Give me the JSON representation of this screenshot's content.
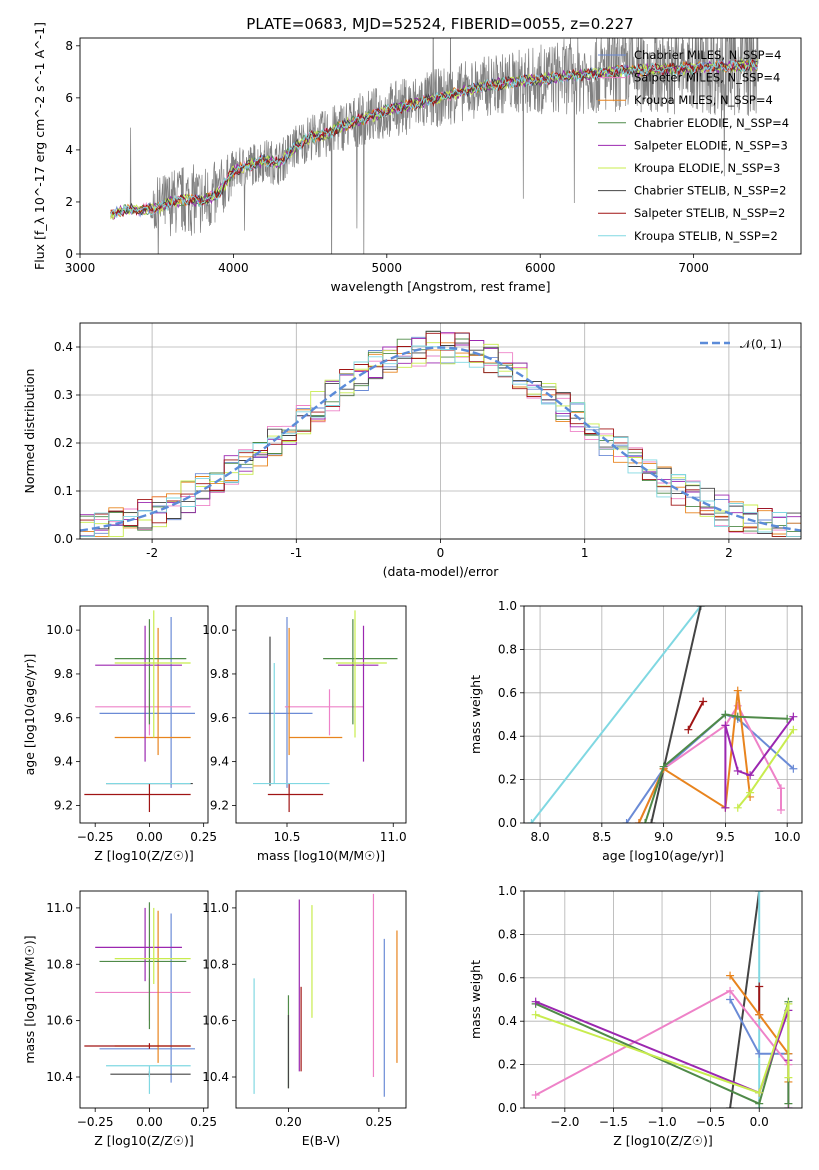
{
  "figure": {
    "title": "PLATE=0683, MJD=52524, FIBERID=0055, z=0.227"
  },
  "series_colors": {
    "Chabrier MILES": "#6b8bd6",
    "Salpeter MILES": "#ee82c8",
    "Kroupa MILES": "#e8841e",
    "Chabrier ELODIE": "#4f8a48",
    "Salpeter ELODIE": "#9b27b0",
    "Kroupa ELODIE": "#c8ec4e",
    "Chabrier STELIB": "#444444",
    "Salpeter STELIB": "#a01414",
    "Kroupa STELIB": "#80d8e2",
    "data": "#808080",
    "gaussian": "#5b8bd8"
  },
  "chart_data": [
    {
      "id": "spectrum",
      "type": "line",
      "title": "PLATE=0683, MJD=52524, FIBERID=0055, z=0.227",
      "xlabel": "wavelength [Angstrom, rest frame]",
      "ylabel": "Flux [f_λ 10^-17 erg cm^-2 s^-1 A^-1]",
      "xlim": [
        3000,
        7700
      ],
      "ylim": [
        0,
        8.3
      ],
      "xticks": [
        3000,
        4000,
        5000,
        6000,
        7000
      ],
      "yticks": [
        0,
        2,
        4,
        6,
        8
      ],
      "legend_loc": "right",
      "legend": [
        "Chabrier MILES, N_SSP=4",
        "Salpeter MILES, N_SSP=4",
        "Kroupa MILES, N_SSP=4",
        "Chabrier ELODIE, N_SSP=4",
        "Salpeter ELODIE, N_SSP=3",
        "Kroupa ELODIE, N_SSP=3",
        "Chabrier STELIB, N_SSP=2",
        "Salpeter STELIB, N_SSP=2",
        "Kroupa STELIB, N_SSP=2"
      ],
      "model_continuum": {
        "x": [
          3200,
          3300,
          3400,
          3500,
          3600,
          3700,
          3800,
          3900,
          4000,
          4100,
          4200,
          4300,
          4400,
          4500,
          4600,
          4700,
          4800,
          4900,
          5000,
          5200,
          5400,
          5600,
          5800,
          6000,
          6200,
          6400,
          6600,
          6800,
          7000,
          7200,
          7400
        ],
        "y": [
          1.5,
          1.7,
          1.7,
          1.75,
          2.0,
          2.1,
          2.05,
          2.3,
          3.2,
          3.4,
          3.6,
          3.5,
          4.1,
          4.5,
          4.6,
          4.9,
          5.1,
          5.3,
          5.5,
          5.8,
          6.1,
          6.4,
          6.6,
          6.7,
          6.85,
          6.95,
          7.05,
          7.1,
          7.15,
          7.2,
          7.25
        ]
      },
      "data_noise_by_wavelength": {
        "x": [
          3200,
          3450,
          3500,
          3700,
          3900,
          4000,
          4500,
          5000,
          5800,
          6200,
          6700,
          7000,
          7400
        ],
        "noise": [
          0.1,
          0.1,
          1.2,
          1.4,
          1.3,
          0.8,
          0.9,
          1.1,
          1.2,
          1.5,
          1.7,
          1.8,
          2.0
        ]
      }
    },
    {
      "id": "residuals",
      "type": "bar",
      "xlabel": "(data-model)/error",
      "ylabel": "Normed distribution",
      "xlim": [
        -2.5,
        2.5
      ],
      "ylim": [
        0,
        0.45
      ],
      "xticks": [
        -2,
        -1,
        0,
        1,
        2
      ],
      "yticks": [
        0.0,
        0.1,
        0.2,
        0.3,
        0.4
      ],
      "legend": [
        "𝒩(0, 1)"
      ],
      "legend_loc": "upper right",
      "bin_width": 0.1,
      "note": "nine step histograms (one per model) scattered around the standard normal curve"
    },
    {
      "id": "age_vs_Z",
      "type": "scatter",
      "xlabel": "Z [log10(Z/Z☉)]",
      "ylabel": "age [log10(age/yr)]",
      "xlim": [
        -0.32,
        0.27
      ],
      "ylim": [
        9.12,
        10.11
      ],
      "xticks": [
        -0.25,
        0.0,
        0.25
      ],
      "yticks": [
        9.2,
        9.4,
        9.6,
        9.8,
        10.0
      ],
      "points": [
        {
          "model": "Chabrier MILES",
          "x": 0.1,
          "xerr": [
            0.33,
            0.11
          ],
          "y": 9.62,
          "yerr": [
            0.34,
            0.44
          ]
        },
        {
          "model": "Salpeter MILES",
          "x": 0.0,
          "xerr": [
            0.25,
            0.19
          ],
          "y": 9.65,
          "yerr": [
            0.13,
            0.08
          ]
        },
        {
          "model": "Kroupa MILES",
          "x": 0.04,
          "xerr": [
            0.2,
            0.15
          ],
          "y": 9.51,
          "yerr": [
            0.08,
            0.5
          ]
        },
        {
          "model": "Chabrier ELODIE",
          "x": 0.0,
          "xerr": [
            0.16,
            0.17
          ],
          "y": 9.87,
          "yerr": [
            0.3,
            0.18
          ]
        },
        {
          "model": "Salpeter ELODIE",
          "x": -0.02,
          "xerr": [
            0.23,
            0.17
          ],
          "y": 9.84,
          "yerr": [
            0.44,
            0.18
          ]
        },
        {
          "model": "Kroupa ELODIE",
          "x": 0.02,
          "xerr": [
            0.18,
            0.17
          ],
          "y": 9.85,
          "yerr": [
            0.34,
            0.24
          ]
        },
        {
          "model": "Chabrier STELIB",
          "x": 0.0,
          "xerr": [
            0.2,
            0.2
          ],
          "y": 9.3,
          "yerr": [
            0.0,
            0.0
          ]
        },
        {
          "model": "Salpeter STELIB",
          "x": 0.0,
          "xerr": [
            0.3,
            0.19
          ],
          "y": 9.25,
          "yerr": [
            0.08,
            0.05
          ]
        },
        {
          "model": "Kroupa STELIB",
          "x": 0.0,
          "xerr": [
            0.2,
            0.19
          ],
          "y": 9.3,
          "yerr": [
            0.0,
            0.0
          ]
        }
      ]
    },
    {
      "id": "age_vs_mass",
      "type": "scatter",
      "xlabel": "mass [log10(M/M☉)]",
      "ylabel": "",
      "xlim": [
        10.26,
        11.06
      ],
      "ylim": [
        9.12,
        10.11
      ],
      "xticks": [
        10.5,
        11.0
      ],
      "yticks": [
        9.2,
        9.4,
        9.6,
        9.8,
        10.0
      ],
      "points": [
        {
          "model": "Chabrier MILES",
          "x": 10.5,
          "xerr": [
            0.18,
            0.12
          ],
          "y": 9.62,
          "yerr": [
            0.34,
            0.44
          ]
        },
        {
          "model": "Salpeter MILES",
          "x": 10.7,
          "xerr": [
            0.21,
            0.16
          ],
          "y": 9.65,
          "yerr": [
            0.13,
            0.08
          ]
        },
        {
          "model": "Kroupa MILES",
          "x": 10.51,
          "xerr": [
            0.0,
            0.25
          ],
          "y": 9.51,
          "yerr": [
            0.08,
            0.5
          ]
        },
        {
          "model": "Chabrier ELODIE",
          "x": 10.81,
          "xerr": [
            0.14,
            0.21
          ],
          "y": 9.87,
          "yerr": [
            0.3,
            0.18
          ]
        },
        {
          "model": "Salpeter ELODIE",
          "x": 10.86,
          "xerr": [
            0.12,
            0.07
          ],
          "y": 9.84,
          "yerr": [
            0.44,
            0.18
          ]
        },
        {
          "model": "Kroupa ELODIE",
          "x": 10.82,
          "xerr": [
            0.09,
            0.15
          ],
          "y": 9.85,
          "yerr": [
            0.34,
            0.24
          ]
        },
        {
          "model": "Chabrier STELIB",
          "x": 10.42,
          "xerr": [
            0.0,
            0.0
          ],
          "y": 9.3,
          "yerr": [
            0.01,
            0.67
          ]
        },
        {
          "model": "Salpeter STELIB",
          "x": 10.51,
          "xerr": [
            0.1,
            0.16
          ],
          "y": 9.25,
          "yerr": [
            0.08,
            0.05
          ]
        },
        {
          "model": "Kroupa STELIB",
          "x": 10.44,
          "xerr": [
            0.1,
            0.26
          ],
          "y": 9.3,
          "yerr": [
            0.0,
            0.55
          ]
        }
      ]
    },
    {
      "id": "weight_vs_age",
      "type": "line",
      "xlabel": "age [log10(age/yr)]",
      "ylabel": "mass weight",
      "xlim": [
        7.87,
        10.12
      ],
      "ylim": [
        0,
        1.0
      ],
      "xticks": [
        8.0,
        8.5,
        9.0,
        9.5,
        10.0
      ],
      "yticks": [
        0.0,
        0.2,
        0.4,
        0.6,
        0.8,
        1.0
      ],
      "series": [
        {
          "model": "Kroupa STELIB",
          "x": [
            7.93,
            9.3
          ],
          "y": [
            0.0,
            1.0
          ]
        },
        {
          "model": "Chabrier STELIB",
          "x": [
            8.9,
            9.3
          ],
          "y": [
            0.0,
            1.0
          ]
        },
        {
          "model": "Salpeter STELIB",
          "x": [
            9.2,
            9.32
          ],
          "y": [
            0.43,
            0.56
          ]
        },
        {
          "model": "Chabrier MILES",
          "x": [
            8.7,
            9.0,
            9.5,
            9.6,
            10.05
          ],
          "y": [
            0.0,
            0.25,
            0.5,
            0.48,
            0.25
          ]
        },
        {
          "model": "Salpeter MILES",
          "x": [
            8.8,
            9.0,
            9.5,
            9.6,
            9.95,
            9.95
          ],
          "y": [
            0.0,
            0.25,
            0.45,
            0.54,
            0.16,
            0.06
          ]
        },
        {
          "model": "Kroupa MILES",
          "x": [
            8.8,
            9.0,
            9.5,
            9.6,
            9.7
          ],
          "y": [
            0.0,
            0.25,
            0.07,
            0.61,
            0.12
          ]
        },
        {
          "model": "Chabrier ELODIE",
          "x": [
            8.85,
            9.0,
            9.5,
            9.6,
            10.0
          ],
          "y": [
            0.0,
            0.26,
            0.5,
            0.49,
            0.48
          ]
        },
        {
          "model": "Salpeter ELODIE",
          "x": [
            9.5,
            9.5,
            9.6,
            9.7,
            10.05
          ],
          "y": [
            0.07,
            0.45,
            0.24,
            0.22,
            0.49
          ]
        },
        {
          "model": "Kroupa ELODIE",
          "x": [
            9.6,
            9.7,
            10.05
          ],
          "y": [
            0.07,
            0.14,
            0.43
          ]
        }
      ]
    },
    {
      "id": "mass_vs_Z",
      "type": "scatter",
      "xlabel": "Z [log10(Z/Z☉)]",
      "ylabel": "mass [log10(M/M☉)]",
      "xlim": [
        -0.32,
        0.27
      ],
      "ylim": [
        10.29,
        11.06
      ],
      "xticks": [
        -0.25,
        0.0,
        0.25
      ],
      "yticks": [
        10.4,
        10.6,
        10.8,
        11.0
      ],
      "points": [
        {
          "model": "Chabrier MILES",
          "x": 0.1,
          "xerr": [
            0.33,
            0.11
          ],
          "y": 10.5,
          "yerr": [
            0.12,
            0.48
          ]
        },
        {
          "model": "Salpeter MILES",
          "x": 0.0,
          "xerr": [
            0.25,
            0.19
          ],
          "y": 10.7,
          "yerr": [
            0.1,
            0.05
          ]
        },
        {
          "model": "Kroupa MILES",
          "x": 0.04,
          "xerr": [
            0.2,
            0.15
          ],
          "y": 10.51,
          "yerr": [
            0.06,
            0.48
          ]
        },
        {
          "model": "Chabrier ELODIE",
          "x": 0.0,
          "xerr": [
            0.23,
            0.17
          ],
          "y": 10.81,
          "yerr": [
            0.24,
            0.21
          ]
        },
        {
          "model": "Salpeter ELODIE",
          "x": -0.02,
          "xerr": [
            0.23,
            0.17
          ],
          "y": 10.86,
          "yerr": [
            0.12,
            0.14
          ]
        },
        {
          "model": "Kroupa ELODIE",
          "x": 0.02,
          "xerr": [
            0.18,
            0.17
          ],
          "y": 10.82,
          "yerr": [
            0.09,
            0.18
          ]
        },
        {
          "model": "Chabrier STELIB",
          "x": 0.0,
          "xerr": [
            0.18,
            0.19
          ],
          "y": 10.41,
          "yerr": [
            0.01,
            0.01
          ]
        },
        {
          "model": "Salpeter STELIB",
          "x": 0.0,
          "xerr": [
            0.3,
            0.19
          ],
          "y": 10.51,
          "yerr": [
            0.01,
            0.01
          ]
        },
        {
          "model": "Kroupa STELIB",
          "x": 0.0,
          "xerr": [
            0.2,
            0.19
          ],
          "y": 10.44,
          "yerr": [
            0.1,
            0.0
          ]
        }
      ]
    },
    {
      "id": "mass_vs_ebv",
      "type": "scatter",
      "xlabel": "E(B-V)",
      "ylabel": "",
      "xlim": [
        0.171,
        0.265
      ],
      "ylim": [
        10.29,
        11.06
      ],
      "xticks": [
        0.2,
        0.25
      ],
      "yticks": [
        10.4,
        10.6,
        10.8,
        11.0
      ],
      "points": [
        {
          "model": "Chabrier MILES",
          "x": 0.253,
          "xerr": [
            0,
            0
          ],
          "y": 10.55,
          "yerr": [
            0.22,
            0.34
          ]
        },
        {
          "model": "Salpeter MILES",
          "x": 0.247,
          "xerr": [
            0,
            0
          ],
          "y": 10.7,
          "yerr": [
            0.3,
            0.35
          ]
        },
        {
          "model": "Kroupa MILES",
          "x": 0.26,
          "xerr": [
            0,
            0
          ],
          "y": 10.65,
          "yerr": [
            0.2,
            0.27
          ]
        },
        {
          "model": "Chabrier ELODIE",
          "x": 0.2,
          "xerr": [
            0,
            0
          ],
          "y": 10.55,
          "yerr": [
            0.19,
            0.14
          ]
        },
        {
          "model": "Salpeter ELODIE",
          "x": 0.206,
          "xerr": [
            0,
            0
          ],
          "y": 10.75,
          "yerr": [
            0.33,
            0.28
          ]
        },
        {
          "model": "Kroupa ELODIE",
          "x": 0.213,
          "xerr": [
            0,
            0
          ],
          "y": 10.8,
          "yerr": [
            0.19,
            0.21
          ]
        },
        {
          "model": "Chabrier STELIB",
          "x": 0.2,
          "xerr": [
            0,
            0
          ],
          "y": 10.5,
          "yerr": [
            0.14,
            0.12
          ]
        },
        {
          "model": "Salpeter STELIB",
          "x": 0.207,
          "xerr": [
            0,
            0
          ],
          "y": 10.6,
          "yerr": [
            0.18,
            0.12
          ]
        },
        {
          "model": "Kroupa STELIB",
          "x": 0.181,
          "xerr": [
            0,
            0
          ],
          "y": 10.55,
          "yerr": [
            0.21,
            0.2
          ]
        }
      ]
    },
    {
      "id": "weight_vs_Z",
      "type": "line",
      "xlabel": "Z [log10(Z/Z☉)]",
      "ylabel": "mass weight",
      "xlim": [
        -2.42,
        0.44
      ],
      "ylim": [
        0,
        1.0
      ],
      "xticks": [
        -2.0,
        -1.5,
        -1.0,
        -0.5,
        0.0
      ],
      "yticks": [
        0.0,
        0.2,
        0.4,
        0.6,
        0.8,
        1.0
      ],
      "series": [
        {
          "model": "Chabrier STELIB",
          "x": [
            -0.3,
            0.0
          ],
          "y": [
            0.0,
            1.0
          ]
        },
        {
          "model": "Kroupa STELIB",
          "x": [
            0.0,
            0.0
          ],
          "y": [
            0.0,
            1.0
          ]
        },
        {
          "model": "Salpeter STELIB",
          "x": [
            0.0,
            0.0
          ],
          "y": [
            0.43,
            0.56
          ]
        },
        {
          "model": "Chabrier MILES",
          "x": [
            -0.3,
            0.0,
            0.3,
            0.3
          ],
          "y": [
            0.5,
            0.25,
            0.25,
            0.0
          ]
        },
        {
          "model": "Salpeter MILES",
          "x": [
            -2.3,
            -0.3,
            0.3,
            0.3
          ],
          "y": [
            0.06,
            0.54,
            0.2,
            0.0
          ]
        },
        {
          "model": "Kroupa MILES",
          "x": [
            -0.3,
            0.0,
            0.3,
            0.3
          ],
          "y": [
            0.61,
            0.43,
            0.25,
            0.12
          ]
        },
        {
          "model": "Chabrier ELODIE",
          "x": [
            -2.3,
            0.0,
            0.3,
            0.3
          ],
          "y": [
            0.48,
            0.02,
            0.49,
            0.02
          ]
        },
        {
          "model": "Salpeter ELODIE",
          "x": [
            -2.3,
            0.0,
            0.3,
            0.3
          ],
          "y": [
            0.49,
            0.07,
            0.45,
            0.22
          ]
        },
        {
          "model": "Kroupa ELODIE",
          "x": [
            -2.3,
            0.0,
            0.3,
            0.3
          ],
          "y": [
            0.43,
            0.07,
            0.48,
            0.14
          ]
        }
      ]
    }
  ]
}
